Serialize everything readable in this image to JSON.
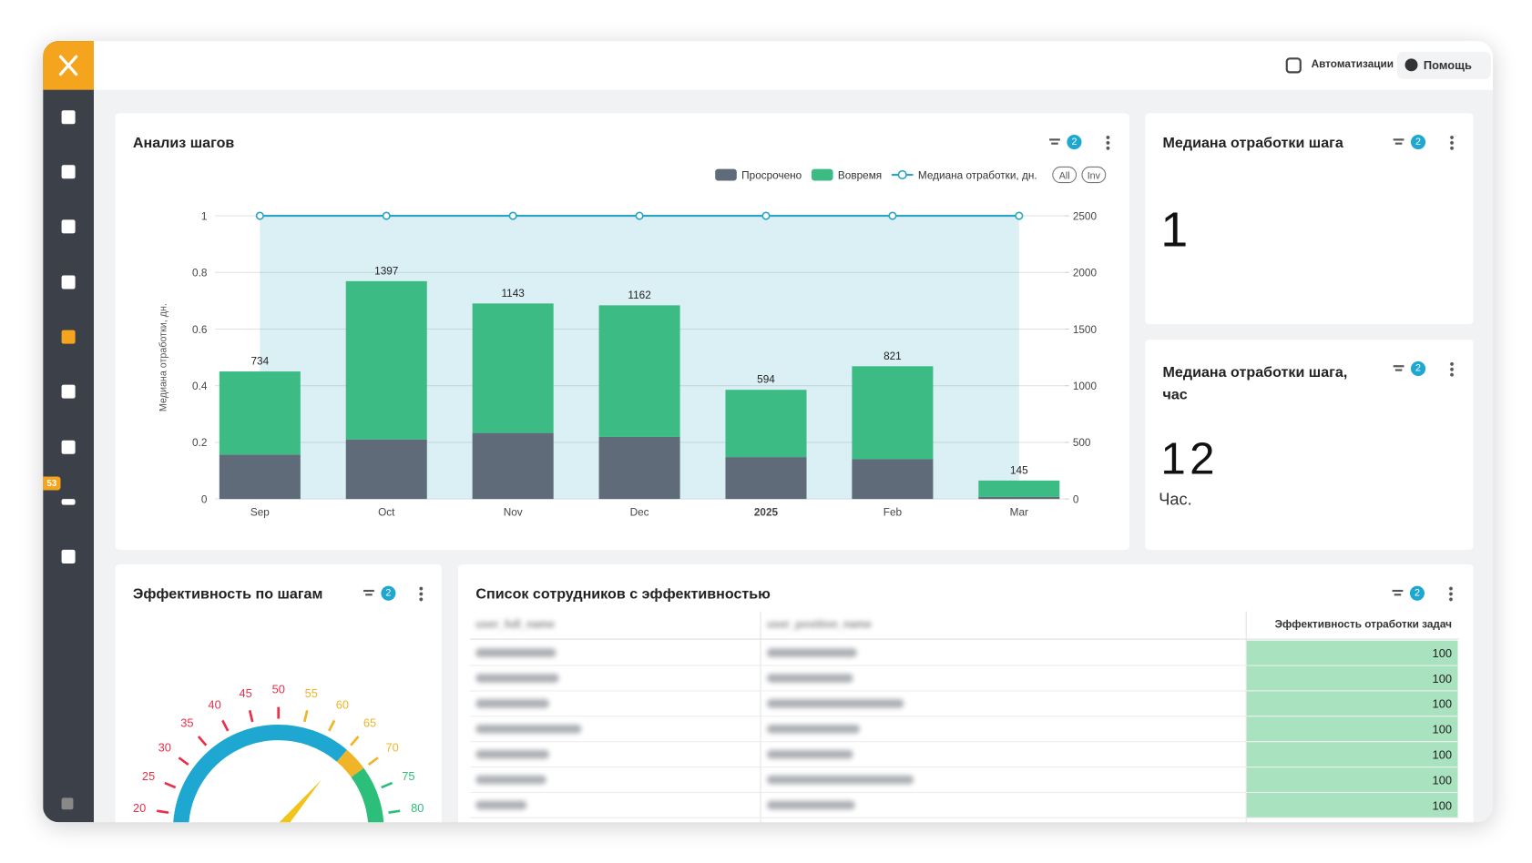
{
  "header": {
    "automations": "Автоматизации",
    "help": "Помощь"
  },
  "sidebar": {
    "badge": "53"
  },
  "chart_data": [
    {
      "type": "bar",
      "title": "Анализ шагов",
      "filter_count": "2",
      "categories": [
        "Sep",
        "Oct",
        "Nov",
        "Dec",
        "2025",
        "Feb",
        "Mar"
      ],
      "ylabel": "Медиана отработки, дн.",
      "series": [
        {
          "name": "Просрочено",
          "color": "#5f6b78",
          "axis": "y2",
          "values": [
            392,
            526,
            583,
            548,
            370,
            351,
            18
          ]
        },
        {
          "name": "Вовремя",
          "color": "#3dbb85",
          "axis": "y2",
          "values": [
            734,
            1397,
            1143,
            1162,
            594,
            821,
            145
          ]
        },
        {
          "name": "Медиана отработки, дн.",
          "color": "#2aa5c4",
          "type": "line",
          "values": [
            1,
            1,
            1,
            1,
            1,
            1,
            1
          ]
        }
      ],
      "ylim": [
        0,
        1
      ],
      "yticks": [
        0,
        0.2,
        0.4,
        0.6,
        0.8,
        1
      ],
      "y2lim": [
        0,
        2500
      ],
      "y2ticks": [
        0,
        500,
        1000,
        1500,
        2000,
        2500
      ],
      "grid": true,
      "buttons": [
        "All",
        "Inv"
      ]
    },
    {
      "type": "gauge",
      "title": "Эффективность по шагам",
      "filter_count": "2",
      "value": 65,
      "range": [
        0,
        100
      ],
      "ticks": [
        20,
        25,
        30,
        35,
        40,
        45,
        50,
        55,
        60,
        65,
        70,
        75,
        80
      ],
      "color": "#1ea7d0",
      "zones": [
        {
          "to": 50,
          "color": "#e8304a"
        },
        {
          "to": 70,
          "color": "#f0b429"
        },
        {
          "to": 100,
          "color": "#2bbf7a"
        }
      ]
    }
  ],
  "kpis": [
    {
      "title": "Медиана отработки шага",
      "filter_count": "2",
      "value": "1"
    },
    {
      "title": "Медиана отработки шага, час",
      "filter_count": "2",
      "value": "12",
      "unit": "Час."
    }
  ],
  "table": {
    "title": "Список сотрудников с эффективностью",
    "filter_count": "2",
    "columns": [
      "user_full_name",
      "user_position_name",
      "Эффективность отработки задач"
    ],
    "values": [
      100,
      100,
      100,
      100,
      100,
      100,
      100
    ]
  }
}
